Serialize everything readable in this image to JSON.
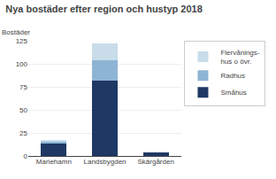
{
  "chart_data": {
    "type": "bar",
    "stacked": true,
    "title": "Nya bostäder efter region och hustyp 2018",
    "ylabel": "Bostäder",
    "categories": [
      "Mariehamn",
      "Landsbygden",
      "Skärgården"
    ],
    "series": [
      {
        "name": "Småhus",
        "color": "#1f3864",
        "values": [
          13,
          82,
          4
        ]
      },
      {
        "name": "Radhus",
        "color": "#8eb4d4",
        "values": [
          2,
          22,
          0
        ]
      },
      {
        "name": "Flervånings-\nhus o övr.",
        "color": "#c8dcea",
        "values": [
          2,
          18,
          0
        ]
      }
    ],
    "ylim": [
      0,
      125
    ],
    "yticks": [
      0,
      25,
      50,
      75,
      100,
      125
    ],
    "grid": true,
    "legend": "right"
  }
}
